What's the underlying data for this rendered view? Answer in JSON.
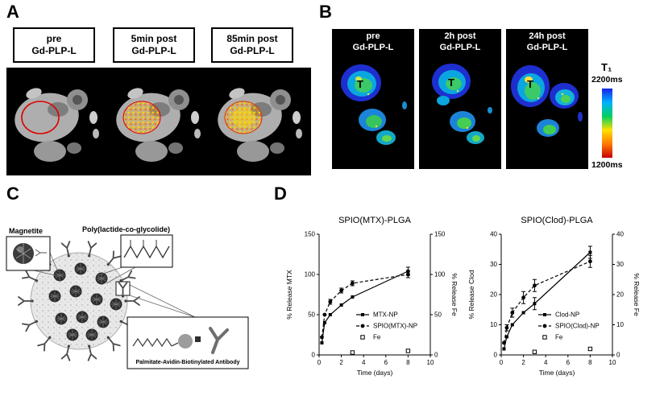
{
  "panelA": {
    "label": "A",
    "images": [
      {
        "label_line1": "pre",
        "label_line2": "Gd-PLP-L"
      },
      {
        "label_line1": "5min post",
        "label_line2": "Gd-PLP-L"
      },
      {
        "label_line1": "85min post",
        "label_line2": "Gd-PLP-L"
      }
    ]
  },
  "panelB": {
    "label": "B",
    "images": [
      {
        "label_line1": "pre",
        "label_line2": "Gd-PLP-L",
        "annotation": "T"
      },
      {
        "label_line1": "2h post",
        "label_line2": "Gd-PLP-L",
        "annotation": "T"
      },
      {
        "label_line1": "24h post",
        "label_line2": "Gd-PLP-L",
        "annotation": "T"
      }
    ],
    "colorbar": {
      "title": "T₁",
      "top_label": "2200ms",
      "bottom_label": "1200ms"
    }
  },
  "panelC": {
    "label": "C",
    "labels": {
      "magnetite": "Magnetite",
      "polymer": "Poly(lactide-co-glycolide)",
      "antibody": "Palmitate-Avidin-Biotinylated Antibody"
    }
  },
  "panelD": {
    "label": "D"
  },
  "chart_data": [
    {
      "type": "line",
      "title": "SPIO(MTX)-PLGA",
      "xlabel": "Time (days)",
      "ylabel_left": "% Release MTX",
      "ylabel_right": "% Release Fe",
      "xlim": [
        0,
        10
      ],
      "ylim": [
        0,
        150
      ],
      "xticks": [
        0,
        2,
        4,
        6,
        8,
        10
      ],
      "yticks": [
        0,
        50,
        100,
        150
      ],
      "grid": false,
      "legend_position": "center-right",
      "series": [
        {
          "name": "MTX-NP",
          "style": "solid",
          "marker": "square-filled",
          "x": [
            0.25,
            0.5,
            1,
            2,
            3,
            8
          ],
          "y": [
            15,
            40,
            50,
            62,
            72,
            104
          ],
          "yerr": [
            0,
            0,
            0,
            0,
            0,
            5
          ]
        },
        {
          "name": "SPIO(MTX)-NP",
          "style": "dashed",
          "marker": "circle-filled",
          "x": [
            0.25,
            0.5,
            1,
            2,
            3,
            8
          ],
          "y": [
            22,
            50,
            66,
            80,
            89,
            100
          ],
          "yerr": [
            0,
            0,
            3,
            3,
            3,
            4
          ]
        },
        {
          "name": "Fe",
          "style": "none",
          "marker": "square-open",
          "x": [
            3,
            8
          ],
          "y": [
            3,
            5
          ],
          "yerr": [
            0,
            0
          ]
        }
      ]
    },
    {
      "type": "line",
      "title": "SPIO(Clod)-PLGA",
      "xlabel": "Time (days)",
      "ylabel_left": "% Release Clod",
      "ylabel_right": "% Release Fe",
      "xlim": [
        0,
        10
      ],
      "ylim": [
        0,
        40
      ],
      "xticks": [
        0,
        2,
        4,
        6,
        8,
        10
      ],
      "yticks": [
        0,
        10,
        20,
        30,
        40
      ],
      "grid": false,
      "legend_position": "center-right",
      "series": [
        {
          "name": "Clod-NP",
          "style": "solid",
          "marker": "square-filled",
          "x": [
            0.25,
            0.5,
            1,
            2,
            3,
            8
          ],
          "y": [
            2,
            6,
            10,
            14,
            17,
            34
          ],
          "yerr": [
            0,
            0,
            0,
            0,
            2,
            2
          ]
        },
        {
          "name": "SPIO(Clod)-NP",
          "style": "dashed",
          "marker": "circle-filled",
          "x": [
            0.25,
            0.5,
            1,
            2,
            3,
            8
          ],
          "y": [
            4,
            9,
            14,
            19,
            23,
            31
          ],
          "yerr": [
            0,
            1,
            1.5,
            2,
            2,
            2
          ]
        },
        {
          "name": "Fe",
          "style": "none",
          "marker": "square-open",
          "x": [
            3,
            8
          ],
          "y": [
            1,
            2
          ],
          "yerr": [
            0,
            0
          ]
        }
      ]
    }
  ]
}
